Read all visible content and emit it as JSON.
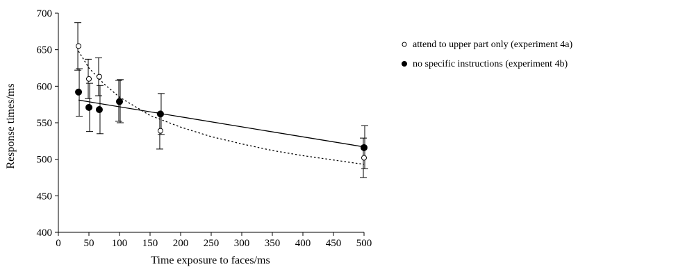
{
  "chart_data": {
    "type": "scatter",
    "title": "",
    "xlabel": "Time exposure to faces/ms",
    "ylabel": "Response times/ms",
    "xlim": [
      0,
      500
    ],
    "ylim": [
      400,
      700
    ],
    "xticks": [
      0,
      50,
      100,
      150,
      200,
      250,
      300,
      350,
      400,
      450,
      500
    ],
    "yticks": [
      400,
      450,
      500,
      550,
      600,
      650,
      700
    ],
    "grid": false,
    "legend_position": "right",
    "series": [
      {
        "name": "attend to upper part only (experiment 4a)",
        "marker": "open-circle",
        "trendline": "dotted-curve",
        "points": [
          {
            "x": 33,
            "y": 655,
            "err_low": 622,
            "err_high": 687
          },
          {
            "x": 50,
            "y": 610,
            "err_low": 583,
            "err_high": 637
          },
          {
            "x": 67,
            "y": 613,
            "err_low": 587,
            "err_high": 639
          },
          {
            "x": 100,
            "y": 580,
            "err_low": 552,
            "err_high": 608
          },
          {
            "x": 167,
            "y": 539,
            "err_low": 514,
            "err_high": 564
          },
          {
            "x": 500,
            "y": 502,
            "err_low": 475,
            "err_high": 529
          }
        ],
        "trend_points": [
          {
            "x": 33,
            "y": 648
          },
          {
            "x": 50,
            "y": 625
          },
          {
            "x": 75,
            "y": 603
          },
          {
            "x": 100,
            "y": 585
          },
          {
            "x": 150,
            "y": 560
          },
          {
            "x": 200,
            "y": 544
          },
          {
            "x": 250,
            "y": 531
          },
          {
            "x": 300,
            "y": 521
          },
          {
            "x": 350,
            "y": 512
          },
          {
            "x": 400,
            "y": 505
          },
          {
            "x": 450,
            "y": 499
          },
          {
            "x": 500,
            "y": 493
          }
        ]
      },
      {
        "name": "no specific instructions (experiment 4b)",
        "marker": "filled-circle",
        "trendline": "solid-line",
        "points": [
          {
            "x": 33,
            "y": 592,
            "err_low": 559,
            "err_high": 624
          },
          {
            "x": 50,
            "y": 571,
            "err_low": 538,
            "err_high": 604
          },
          {
            "x": 67,
            "y": 568,
            "err_low": 535,
            "err_high": 601
          },
          {
            "x": 100,
            "y": 579,
            "err_low": 550,
            "err_high": 609
          },
          {
            "x": 167,
            "y": 562,
            "err_low": 534,
            "err_high": 590
          },
          {
            "x": 500,
            "y": 516,
            "err_low": 487,
            "err_high": 546
          }
        ],
        "trend_points": [
          {
            "x": 33,
            "y": 581
          },
          {
            "x": 500,
            "y": 517
          }
        ]
      }
    ]
  }
}
